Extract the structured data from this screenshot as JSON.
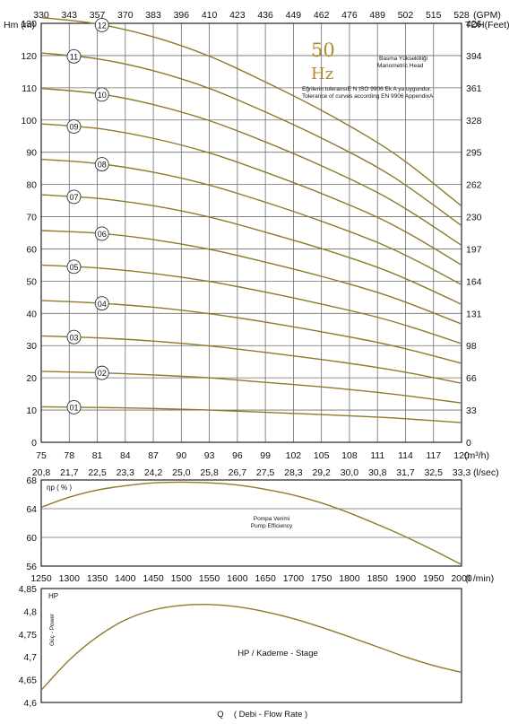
{
  "colors": {
    "curve": "#8e7a2a",
    "grid": "#6e6e6e",
    "frame": "#222222",
    "hz": "#b08a32"
  },
  "chart_data": [
    {
      "type": "line",
      "name": "head",
      "top_axis": {
        "label": "(GPM)",
        "ticks": [
          "330",
          "343",
          "357",
          "370",
          "383",
          "396",
          "410",
          "423",
          "436",
          "449",
          "462",
          "476",
          "489",
          "502",
          "515",
          "528"
        ]
      },
      "left_axis": {
        "label": "Hm (m)",
        "min": 0,
        "max": 130,
        "ticks": [
          "0",
          "10",
          "20",
          "30",
          "40",
          "50",
          "60",
          "70",
          "80",
          "90",
          "100",
          "110",
          "120",
          "130"
        ]
      },
      "right_axis": {
        "label": "TDH(Feet)",
        "ticks": [
          "0",
          "33",
          "66",
          "98",
          "131",
          "164",
          "197",
          "230",
          "262",
          "295",
          "328",
          "361",
          "394",
          "426"
        ]
      },
      "bottom_axis": {
        "label": "(m³/h)",
        "min": 75,
        "max": 120,
        "ticks": [
          "75",
          "78",
          "81",
          "84",
          "87",
          "90",
          "93",
          "96",
          "99",
          "102",
          "105",
          "108",
          "111",
          "114",
          "117",
          "120"
        ]
      },
      "second_bottom_axis": {
        "label": "(l/sec)",
        "ticks": [
          "20,8",
          "21,7",
          "22,5",
          "23,3",
          "24,2",
          "25,0",
          "25,8",
          "26,7",
          "27,5",
          "28,3",
          "29,2",
          "30,0",
          "30,8",
          "31,7",
          "32,5",
          "33,3"
        ]
      },
      "hz_number": "50",
      "hz_unit": "Hz",
      "legend_tr": "Basma Yüksekliliği",
      "legend_en": "Manometric Head",
      "tolerance_tr": "Eğrilerin toleransıE N ISO 9906 Ek A ya uygundur.",
      "tolerance_en": "Tolerance of curves according EN 9906 AppendixA",
      "grid": true,
      "x": [
        75,
        81,
        87,
        93,
        99,
        105,
        111,
        115,
        120
      ],
      "series": [
        {
          "name": "01",
          "values": [
            11.0,
            10.8,
            10.5,
            10.0,
            9.3,
            8.6,
            7.8,
            7.1,
            6.1
          ],
          "label_x": 78.5
        },
        {
          "name": "02",
          "values": [
            22.0,
            21.6,
            20.9,
            20.0,
            18.6,
            17.2,
            15.5,
            14.1,
            12.2
          ],
          "label_x": 81.5
        },
        {
          "name": "03",
          "values": [
            33.0,
            32.4,
            31.4,
            29.9,
            27.9,
            25.7,
            23.2,
            21.2,
            18.3
          ],
          "label_x": 78.5
        },
        {
          "name": "04",
          "values": [
            44.0,
            43.2,
            41.9,
            39.9,
            37.3,
            34.3,
            31.0,
            28.3,
            24.5
          ],
          "label_x": 81.5
        },
        {
          "name": "05",
          "values": [
            55.0,
            54.1,
            52.4,
            49.9,
            46.6,
            42.9,
            38.8,
            35.4,
            30.6
          ],
          "label_x": 78.5
        },
        {
          "name": "06",
          "values": [
            65.7,
            64.9,
            62.9,
            59.9,
            55.9,
            51.5,
            46.5,
            42.4,
            36.7
          ],
          "label_x": 81.5
        },
        {
          "name": "07",
          "values": [
            76.8,
            75.7,
            73.4,
            69.9,
            65.2,
            60.1,
            54.3,
            49.5,
            42.8
          ],
          "label_x": 78.5
        },
        {
          "name": "08",
          "values": [
            87.8,
            86.5,
            83.8,
            79.8,
            74.5,
            68.6,
            62.0,
            56.6,
            48.9
          ],
          "label_x": 81.5
        },
        {
          "name": "09",
          "values": [
            98.8,
            97.4,
            94.3,
            89.8,
            83.8,
            77.2,
            69.8,
            63.7,
            55.0
          ],
          "label_x": 78.5
        },
        {
          "name": "10",
          "values": [
            109.8,
            108.2,
            104.8,
            99.8,
            93.2,
            85.8,
            77.5,
            70.7,
            61.1
          ],
          "label_x": 81.5
        },
        {
          "name": "11",
          "values": [
            120.8,
            119.0,
            115.3,
            109.8,
            102.5,
            94.4,
            85.3,
            77.8,
            67.2
          ],
          "label_x": 78.5
        },
        {
          "name": "12",
          "values": [
            131.8,
            129.8,
            125.8,
            119.8,
            111.8,
            103.0,
            93.0,
            84.9,
            73.3
          ],
          "label_x": 81.5
        }
      ]
    },
    {
      "type": "line",
      "name": "efficiency",
      "left_axis": {
        "label": "ηp ( % )",
        "min": 56,
        "max": 68,
        "ticks": [
          "56",
          "60",
          "64",
          "68"
        ]
      },
      "bottom_axis": {
        "label": "(l /min)",
        "ticks": [
          "1250",
          "1300",
          "1350",
          "1400",
          "1450",
          "1500",
          "1550",
          "1600",
          "1650",
          "1700",
          "1750",
          "1800",
          "1850",
          "1900",
          "1950",
          "2000"
        ]
      },
      "legend_tr": "Pompa Verimi",
      "legend_en": "Pump Efficiency",
      "grid": true,
      "x": [
        75,
        78,
        81,
        84,
        87,
        90,
        93,
        96,
        99,
        102,
        105,
        108,
        111,
        114,
        117,
        120
      ],
      "series": [
        {
          "values": [
            64.2,
            65.6,
            66.6,
            67.2,
            67.6,
            67.7,
            67.6,
            67.3,
            66.7,
            65.9,
            64.8,
            63.4,
            61.8,
            60.1,
            58.2,
            56.2
          ]
        }
      ]
    },
    {
      "type": "line",
      "name": "power",
      "left_axis": {
        "label": "HP",
        "side_label": "Güç - Power",
        "min": 4.6,
        "max": 4.85,
        "ticks": [
          "4,6",
          "4,65",
          "4,7",
          "4,75",
          "4,8",
          "4,85"
        ]
      },
      "bottom_label_left": "Q",
      "bottom_label": "( Debi - Flow Rate )",
      "legend": "HP / Kademe - Stage",
      "grid": false,
      "x": [
        75,
        78,
        81,
        84,
        87,
        90,
        93,
        96,
        99,
        102,
        105,
        108,
        111,
        114,
        117,
        120
      ],
      "series": [
        {
          "values": [
            4.627,
            4.693,
            4.744,
            4.781,
            4.803,
            4.813,
            4.815,
            4.81,
            4.799,
            4.784,
            4.765,
            4.744,
            4.722,
            4.7,
            4.681,
            4.666
          ]
        }
      ]
    }
  ]
}
